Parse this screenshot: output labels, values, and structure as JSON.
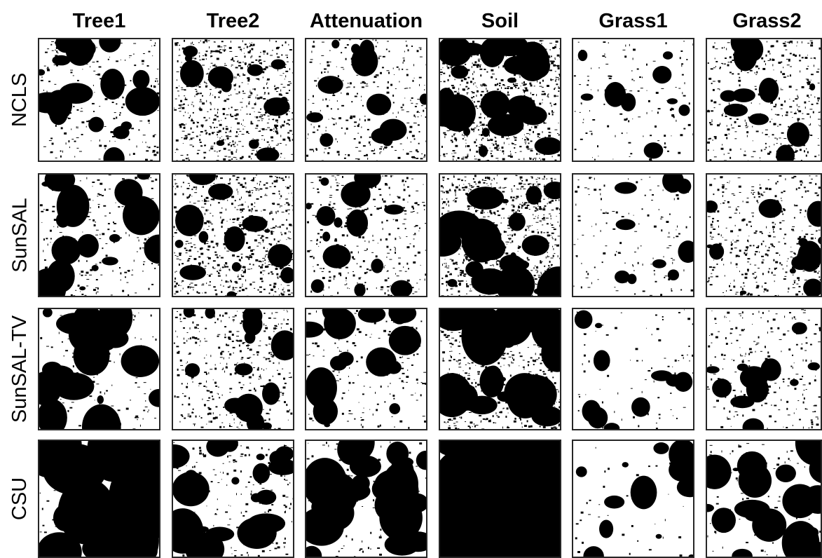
{
  "columns": [
    "Tree1",
    "Tree2",
    "Attenuation",
    "Soil",
    "Grass1",
    "Grass2"
  ],
  "rows": [
    "NCLS",
    "SunSAL",
    "SunSAL-TV",
    "CSU"
  ],
  "colors": {
    "foreground": "#000000",
    "background": "#ffffff",
    "frame": "#262626"
  }
}
